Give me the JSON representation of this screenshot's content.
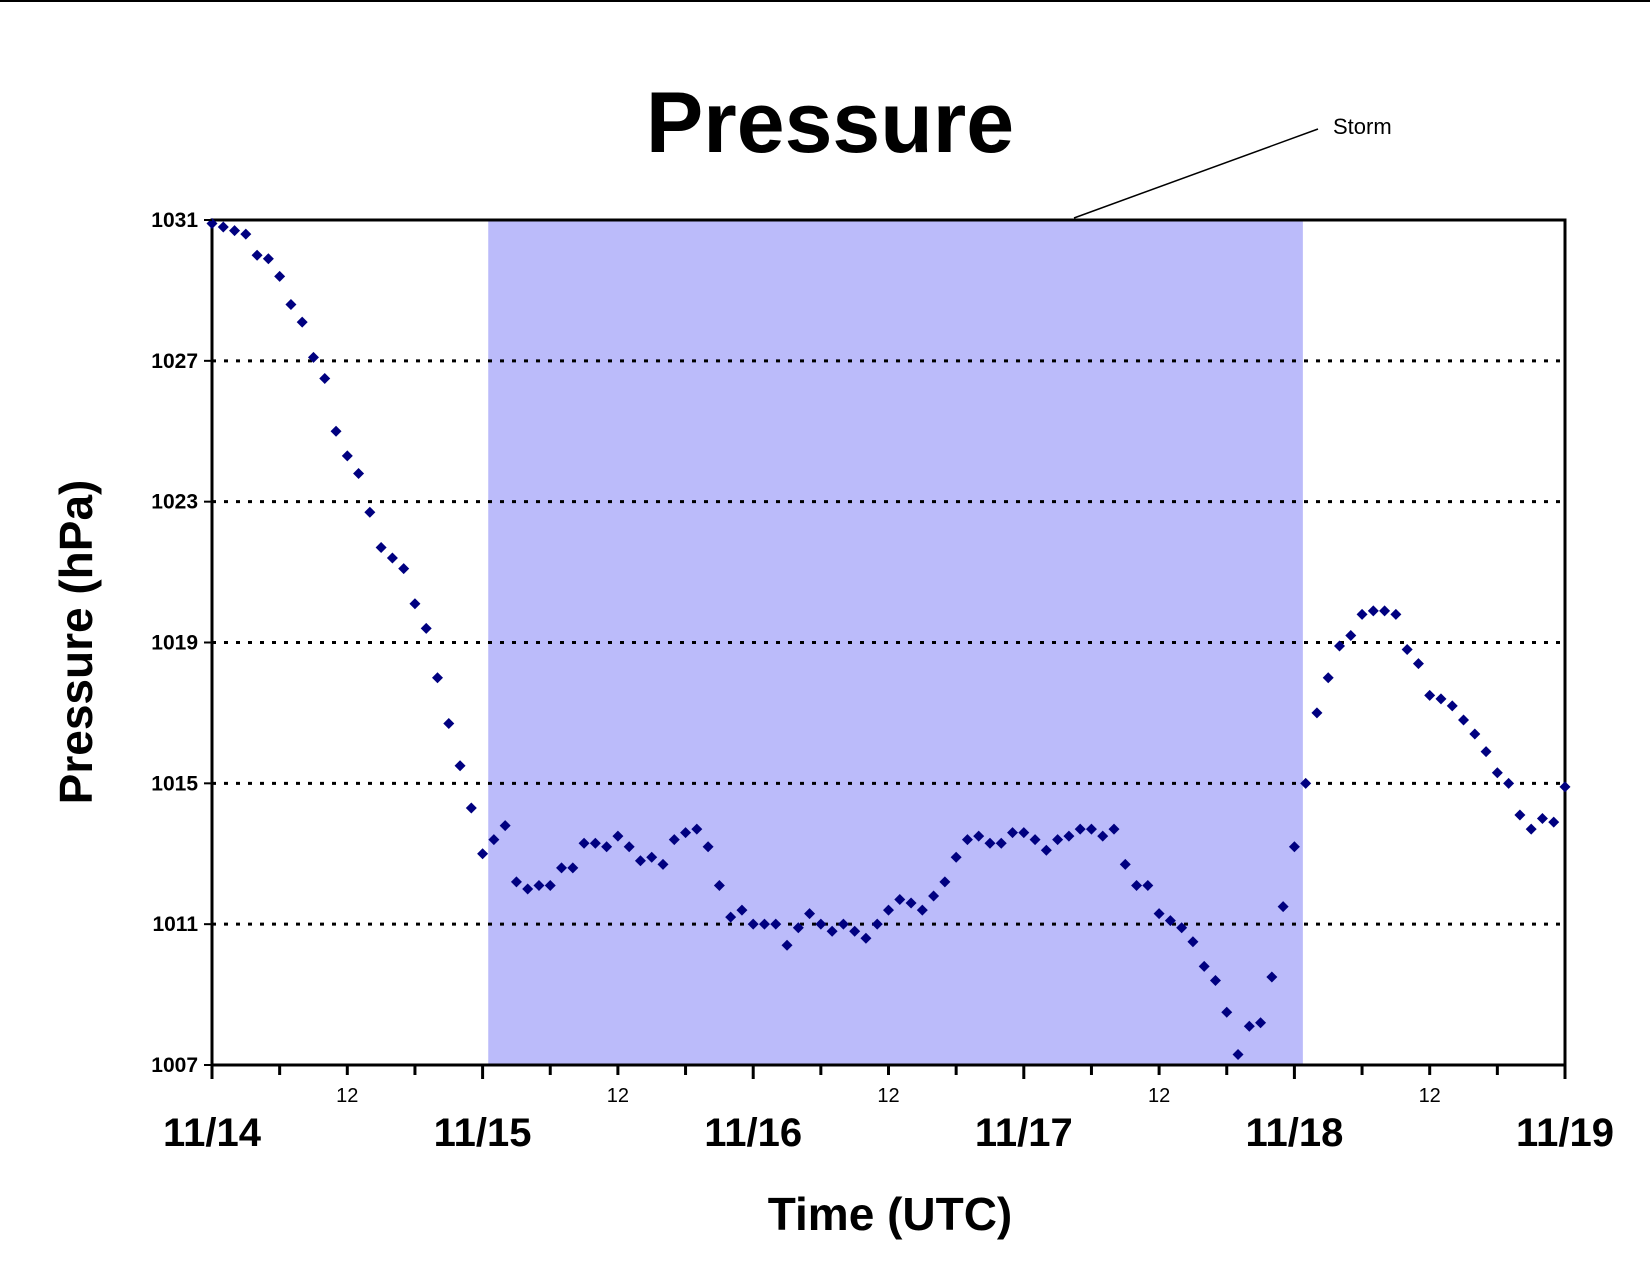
{
  "chart_data": {
    "type": "scatter",
    "title": "Pressure",
    "xlabel": "Time (UTC)",
    "ylabel": "Pressure (hPa)",
    "xlim": [
      "11/14 00:00",
      "11/19 00:00"
    ],
    "ylim": [
      1007,
      1031
    ],
    "yticks": [
      "1031",
      "1027",
      "1023",
      "1019",
      "1015",
      "1011",
      "1007"
    ],
    "ytick_values": [
      1031,
      1027,
      1023,
      1019,
      1015,
      1011,
      1007
    ],
    "xticks_major": [
      "11/14",
      "11/15",
      "11/16",
      "11/17",
      "11/18",
      "11/19"
    ],
    "xticks_minor": [
      "12",
      "12",
      "12",
      "12",
      "12"
    ],
    "grid": "horizontal dotted",
    "shaded_region": {
      "label": "Storm",
      "x_start": "11/15 00:30",
      "x_end": "11/18 00:45",
      "color": "#BBBBFA"
    },
    "marker_color": "#000080",
    "interval_hours": 1,
    "start": "11/14 00:00",
    "y": [
      1030.9,
      1030.8,
      1030.7,
      1030.6,
      1030.0,
      1029.9,
      1029.4,
      1028.6,
      1028.1,
      1027.1,
      1026.5,
      1025.0,
      1024.3,
      1023.8,
      1022.7,
      1021.7,
      1021.4,
      1021.1,
      1020.1,
      1019.4,
      1018.0,
      1016.7,
      1015.5,
      1014.3,
      1013.0,
      1013.4,
      1013.8,
      1012.2,
      1012.0,
      1012.1,
      1012.1,
      1012.6,
      1012.6,
      1013.3,
      1013.3,
      1013.2,
      1013.5,
      1013.2,
      1012.8,
      1012.9,
      1012.7,
      1013.4,
      1013.6,
      1013.7,
      1013.2,
      1012.1,
      1011.2,
      1011.4,
      1011.0,
      1011.0,
      1011.0,
      1010.4,
      1010.9,
      1011.3,
      1011.0,
      1010.8,
      1011.0,
      1010.8,
      1010.6,
      1011.0,
      1011.4,
      1011.7,
      1011.6,
      1011.4,
      1011.8,
      1012.2,
      1012.9,
      1013.4,
      1013.5,
      1013.3,
      1013.3,
      1013.6,
      1013.6,
      1013.4,
      1013.1,
      1013.4,
      1013.5,
      1013.7,
      1013.7,
      1013.5,
      1013.7,
      1012.7,
      1012.1,
      1012.1,
      1011.3,
      1011.1,
      1010.9,
      1010.5,
      1009.8,
      1009.4,
      1008.5,
      1007.3,
      1008.1,
      1008.2,
      1009.5,
      1011.5,
      1013.2,
      1015.0,
      1017.0,
      1018.0,
      1018.9,
      1019.2,
      1019.8,
      1019.9,
      1019.9,
      1019.8,
      1018.8,
      1018.4,
      1017.5,
      1017.4,
      1017.2,
      1016.8,
      1016.4,
      1015.9,
      1015.3,
      1015.0,
      1014.1,
      1013.7,
      1014.0,
      1013.9,
      1014.9
    ]
  }
}
